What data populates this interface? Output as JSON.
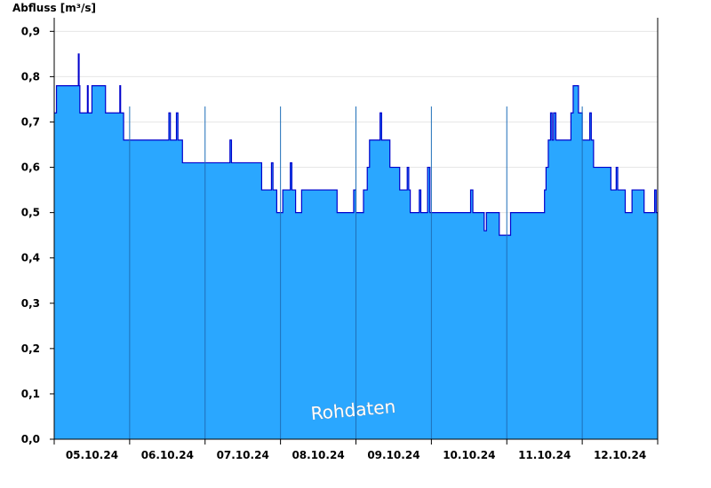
{
  "chart_data": {
    "type": "area",
    "ylabel": "Abfluss [m³/s]",
    "ylim": [
      0,
      0.93
    ],
    "yticks": [
      "0,0",
      "0,1",
      "0,2",
      "0,3",
      "0,4",
      "0,5",
      "0,6",
      "0,7",
      "0,8",
      "0,9"
    ],
    "xlim": [
      0,
      8
    ],
    "xticks": [
      {
        "label": "05.10.24",
        "x": 0.5
      },
      {
        "label": "06.10.24",
        "x": 1.5
      },
      {
        "label": "07.10.24",
        "x": 2.5
      },
      {
        "label": "08.10.24",
        "x": 3.5
      },
      {
        "label": "09.10.24",
        "x": 4.5
      },
      {
        "label": "10.10.24",
        "x": 5.5
      },
      {
        "label": "11.10.24",
        "x": 6.5
      },
      {
        "label": "12.10.24",
        "x": 7.5
      }
    ],
    "series": [
      {
        "values": [
          [
            0.0,
            0.72
          ],
          [
            0.03,
            0.78
          ],
          [
            0.3,
            0.78
          ],
          [
            0.32,
            0.85
          ],
          [
            0.33,
            0.78
          ],
          [
            0.34,
            0.72
          ],
          [
            0.43,
            0.72
          ],
          [
            0.44,
            0.78
          ],
          [
            0.45,
            0.72
          ],
          [
            0.48,
            0.72
          ],
          [
            0.5,
            0.78
          ],
          [
            0.65,
            0.78
          ],
          [
            0.68,
            0.72
          ],
          [
            0.85,
            0.72
          ],
          [
            0.87,
            0.78
          ],
          [
            0.88,
            0.72
          ],
          [
            0.92,
            0.66
          ],
          [
            1.5,
            0.66
          ],
          [
            1.52,
            0.72
          ],
          [
            1.54,
            0.66
          ],
          [
            1.6,
            0.66
          ],
          [
            1.62,
            0.72
          ],
          [
            1.64,
            0.66
          ],
          [
            1.68,
            0.66
          ],
          [
            1.7,
            0.61
          ],
          [
            2.3,
            0.61
          ],
          [
            2.33,
            0.66
          ],
          [
            2.35,
            0.61
          ],
          [
            2.5,
            0.61
          ],
          [
            2.7,
            0.61
          ],
          [
            2.75,
            0.55
          ],
          [
            2.85,
            0.55
          ],
          [
            2.88,
            0.61
          ],
          [
            2.9,
            0.55
          ],
          [
            2.92,
            0.55
          ],
          [
            2.95,
            0.5
          ],
          [
            3.0,
            0.5
          ],
          [
            3.03,
            0.55
          ],
          [
            3.1,
            0.55
          ],
          [
            3.13,
            0.61
          ],
          [
            3.15,
            0.55
          ],
          [
            3.2,
            0.5
          ],
          [
            3.25,
            0.5
          ],
          [
            3.28,
            0.55
          ],
          [
            3.7,
            0.55
          ],
          [
            3.75,
            0.5
          ],
          [
            3.95,
            0.5
          ],
          [
            3.97,
            0.55
          ],
          [
            4.0,
            0.5
          ],
          [
            4.05,
            0.5
          ],
          [
            4.1,
            0.55
          ],
          [
            4.15,
            0.6
          ],
          [
            4.18,
            0.66
          ],
          [
            4.3,
            0.66
          ],
          [
            4.32,
            0.72
          ],
          [
            4.34,
            0.66
          ],
          [
            4.42,
            0.66
          ],
          [
            4.45,
            0.6
          ],
          [
            4.5,
            0.6
          ],
          [
            4.58,
            0.55
          ],
          [
            4.65,
            0.55
          ],
          [
            4.68,
            0.6
          ],
          [
            4.7,
            0.55
          ],
          [
            4.72,
            0.5
          ],
          [
            4.8,
            0.5
          ],
          [
            4.84,
            0.55
          ],
          [
            4.86,
            0.5
          ],
          [
            4.9,
            0.5
          ],
          [
            4.95,
            0.6
          ],
          [
            4.98,
            0.5
          ],
          [
            5.5,
            0.5
          ],
          [
            5.52,
            0.55
          ],
          [
            5.55,
            0.5
          ],
          [
            5.6,
            0.5
          ],
          [
            5.7,
            0.46
          ],
          [
            5.73,
            0.5
          ],
          [
            5.85,
            0.5
          ],
          [
            5.9,
            0.45
          ],
          [
            6.0,
            0.45
          ],
          [
            6.05,
            0.5
          ],
          [
            6.45,
            0.5
          ],
          [
            6.5,
            0.55
          ],
          [
            6.52,
            0.6
          ],
          [
            6.55,
            0.66
          ],
          [
            6.58,
            0.72
          ],
          [
            6.6,
            0.66
          ],
          [
            6.62,
            0.72
          ],
          [
            6.65,
            0.66
          ],
          [
            6.8,
            0.66
          ],
          [
            6.85,
            0.72
          ],
          [
            6.88,
            0.78
          ],
          [
            6.92,
            0.78
          ],
          [
            6.95,
            0.72
          ],
          [
            7.0,
            0.66
          ],
          [
            7.08,
            0.66
          ],
          [
            7.1,
            0.72
          ],
          [
            7.12,
            0.66
          ],
          [
            7.15,
            0.6
          ],
          [
            7.35,
            0.6
          ],
          [
            7.38,
            0.55
          ],
          [
            7.42,
            0.55
          ],
          [
            7.45,
            0.6
          ],
          [
            7.47,
            0.55
          ],
          [
            7.55,
            0.55
          ],
          [
            7.57,
            0.5
          ],
          [
            7.63,
            0.5
          ],
          [
            7.66,
            0.55
          ],
          [
            7.8,
            0.55
          ],
          [
            7.82,
            0.5
          ],
          [
            7.94,
            0.5
          ],
          [
            7.96,
            0.55
          ],
          [
            7.98,
            0.5
          ],
          [
            8.0,
            0.5
          ]
        ],
        "fill_color": "#2aa7ff",
        "line_color": "#0000cc"
      }
    ],
    "annotation": "Rohdaten",
    "grid": "horizontal",
    "legend": "none"
  }
}
